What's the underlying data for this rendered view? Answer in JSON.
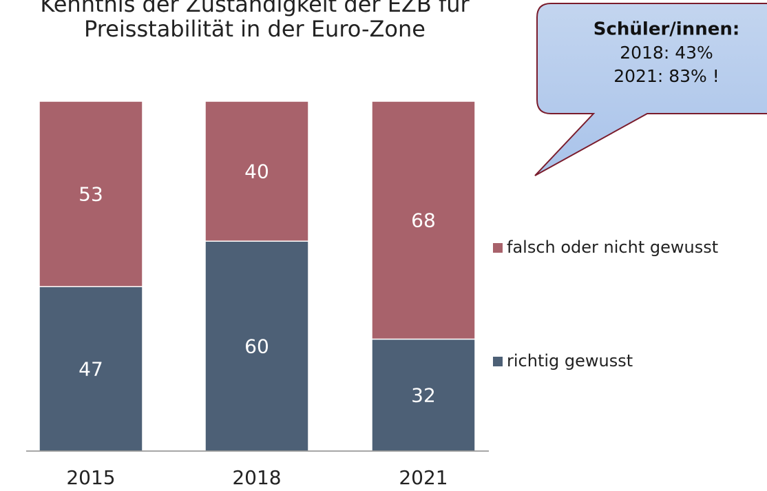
{
  "chart_data": {
    "type": "stacked_bar",
    "title": [
      "Kenntnis der Zuständigkeit der EZB für",
      "Preisstabilität in der Euro-Zone"
    ],
    "categories": [
      "2015",
      "2018",
      "2021"
    ],
    "series": [
      {
        "name": "richtig gewusst",
        "color": "#4d6076",
        "values": [
          47,
          60,
          32
        ]
      },
      {
        "name": "falsch oder nicht gewusst",
        "color": "#a8626b",
        "values": [
          53,
          40,
          68
        ]
      }
    ],
    "ylim": [
      0,
      100
    ],
    "annotations": [
      "Schüler/innen:",
      "2018: 43%",
      "2021: 83% !"
    ]
  }
}
